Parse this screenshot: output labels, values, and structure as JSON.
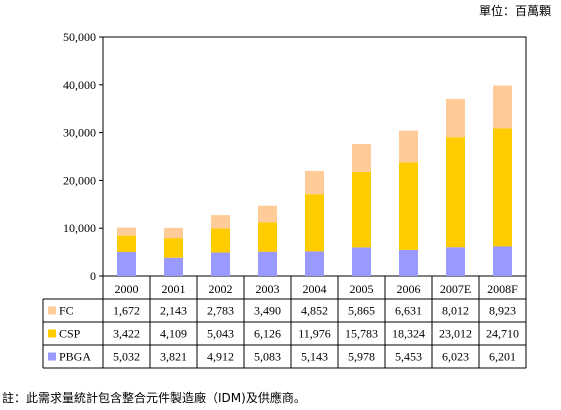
{
  "unit_label": "單位：百萬顆",
  "footnote": "註：此需求量統計包含整合元件製造廠（IDM)及供應商。",
  "colors": {
    "FC": "#FFCC99",
    "CSP": "#FFCC00",
    "PBGA": "#9999FF",
    "frame": "#000000",
    "grid": "#000000"
  },
  "chart_data": {
    "type": "bar",
    "stacked": true,
    "categories": [
      "2000",
      "2001",
      "2002",
      "2003",
      "2004",
      "2005",
      "2006",
      "2007E",
      "2008F"
    ],
    "series": [
      {
        "name": "FC",
        "values": [
          1672,
          2143,
          2783,
          3490,
          4852,
          5865,
          6631,
          8012,
          8923
        ]
      },
      {
        "name": "CSP",
        "values": [
          3422,
          4109,
          5043,
          6126,
          11976,
          15783,
          18324,
          23012,
          24710
        ]
      },
      {
        "name": "PBGA",
        "values": [
          5032,
          3821,
          4912,
          5083,
          5143,
          5978,
          5453,
          6023,
          6201
        ]
      }
    ],
    "stack_order_bottom_to_top": [
      "PBGA",
      "CSP",
      "FC"
    ],
    "ylim": [
      0,
      50000
    ],
    "yticks": [
      0,
      10000,
      20000,
      30000,
      40000,
      50000
    ],
    "ytick_labels": [
      "0",
      "10,000",
      "20,000",
      "30,000",
      "40,000",
      "50,000"
    ],
    "grid": false,
    "legend": "data-table",
    "data_table": {
      "rows": [
        {
          "series": "FC",
          "cells": [
            "1,672",
            "2,143",
            "2,783",
            "3,490",
            "4,852",
            "5,865",
            "6,631",
            "8,012",
            "8,923"
          ]
        },
        {
          "series": "CSP",
          "cells": [
            "3,422",
            "4,109",
            "5,043",
            "6,126",
            "11,976",
            "15,783",
            "18,324",
            "23,012",
            "24,710"
          ]
        },
        {
          "series": "PBGA",
          "cells": [
            "5,032",
            "3,821",
            "4,912",
            "5,083",
            "5,143",
            "5,978",
            "5,453",
            "6,023",
            "6,201"
          ]
        }
      ]
    }
  }
}
